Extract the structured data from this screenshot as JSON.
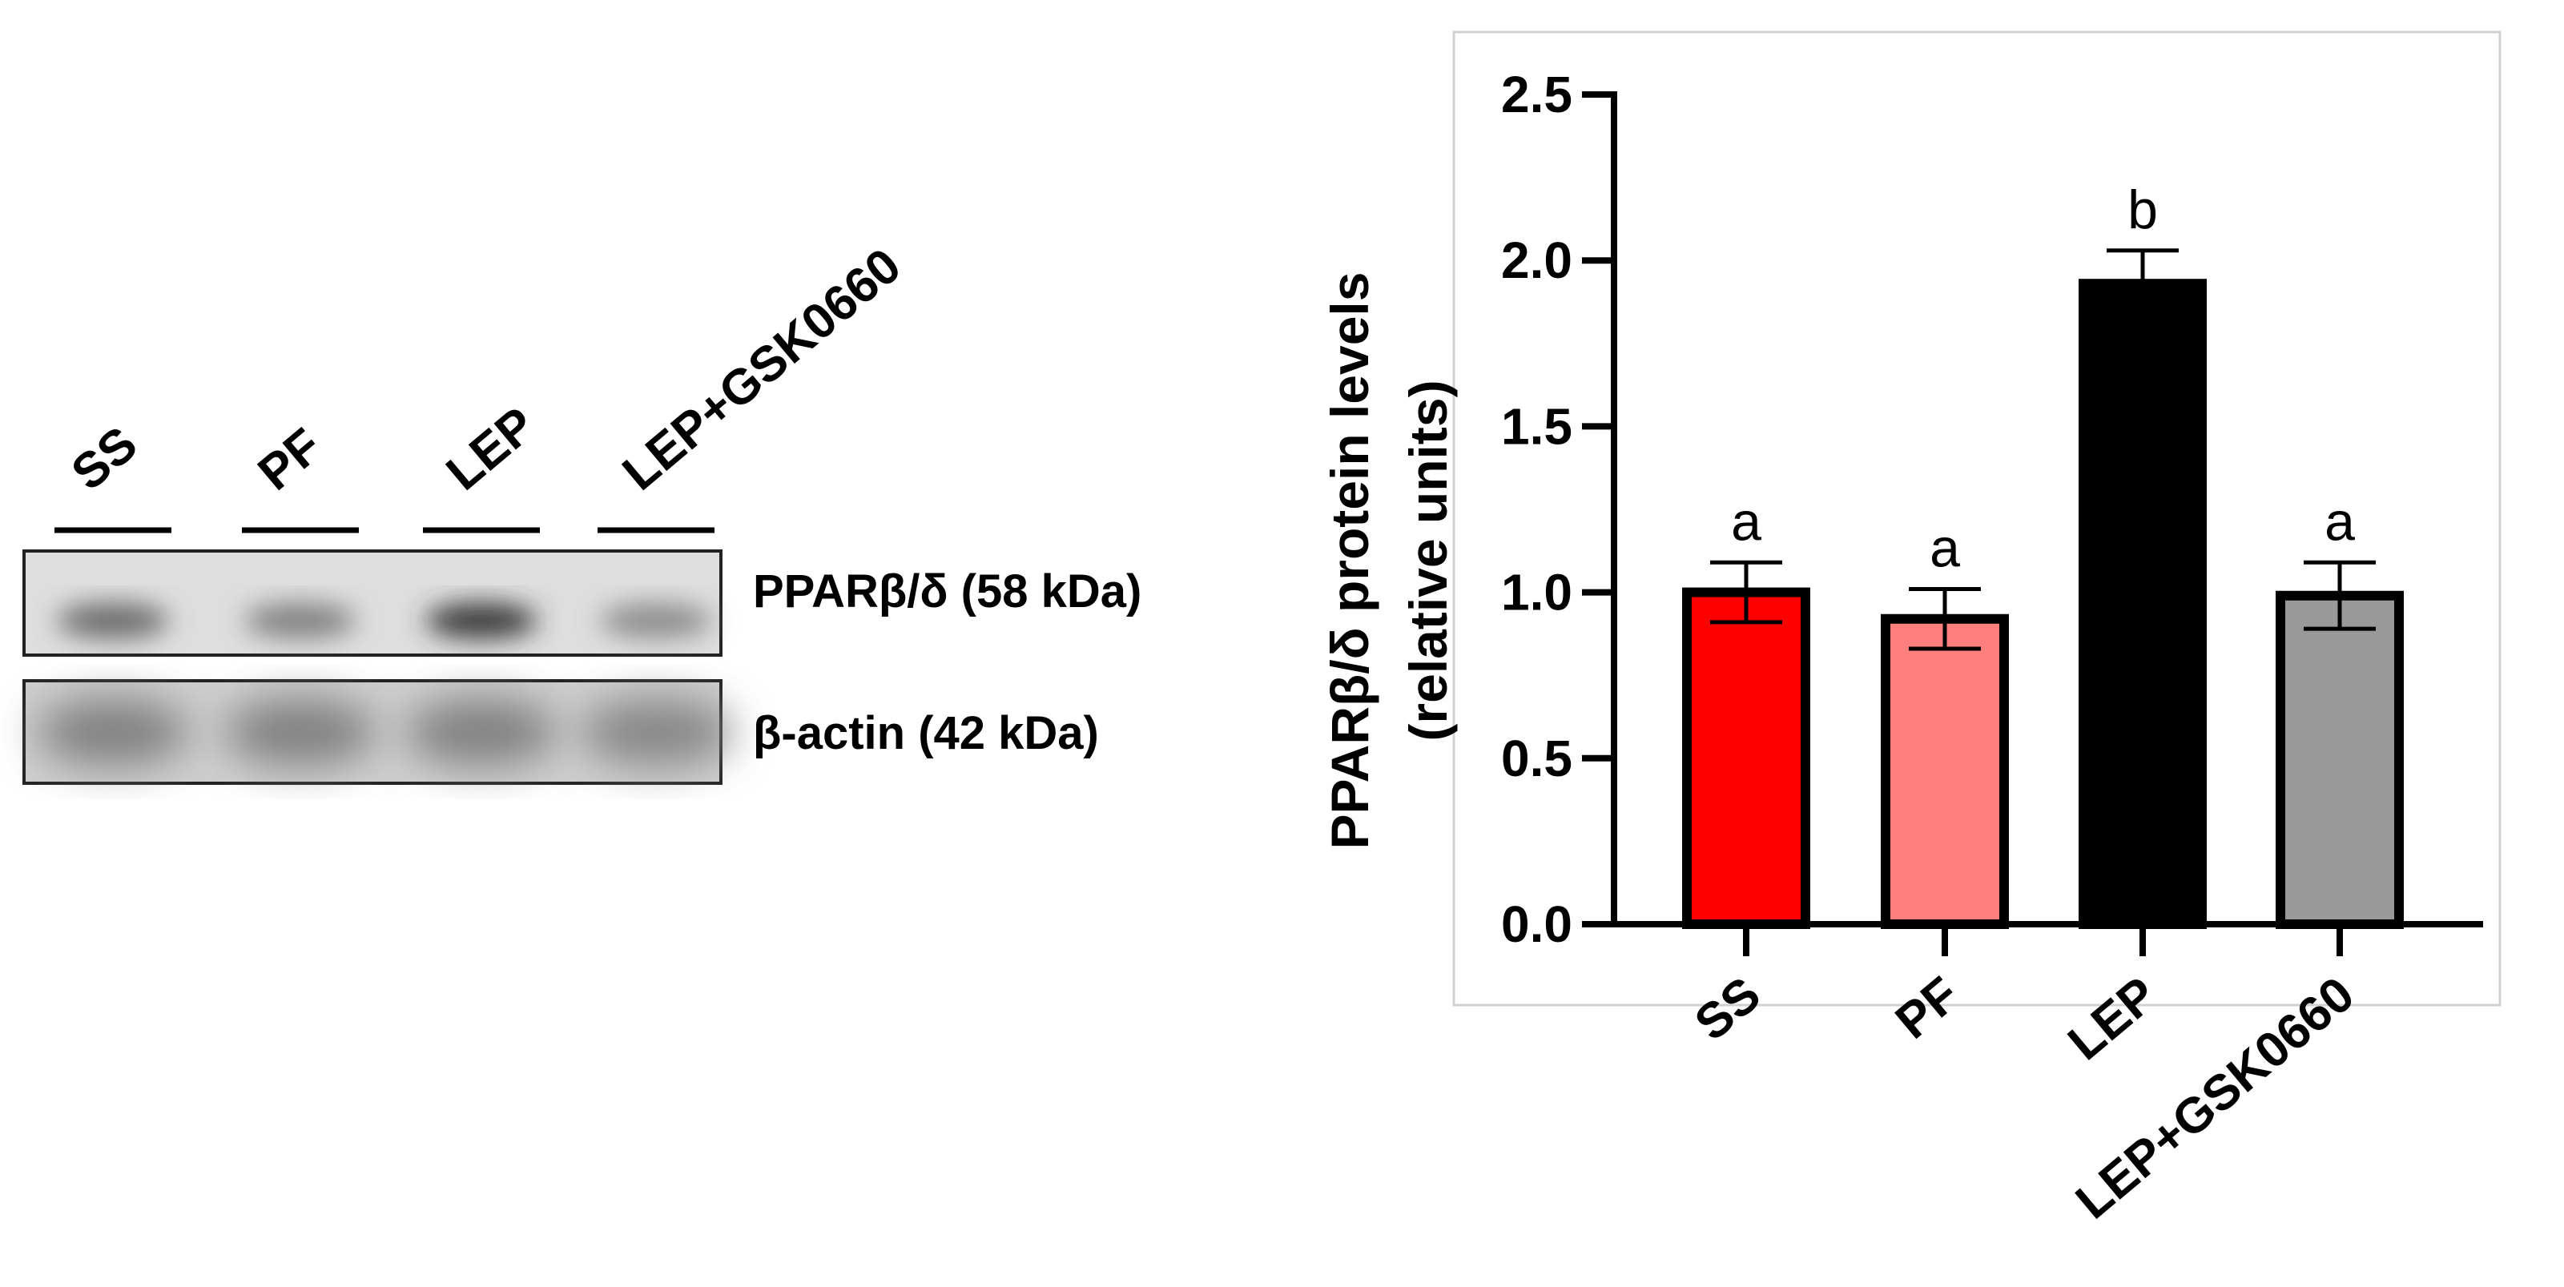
{
  "blot": {
    "lanes": [
      "SS",
      "PF",
      "LEP",
      "LEP+GSK0660"
    ],
    "rows": [
      {
        "label": "PPARβ/δ (58 kDa)",
        "intensities": [
          0.55,
          0.42,
          0.85,
          0.35
        ]
      },
      {
        "label": "β-actin (42 kDa)",
        "intensities": [
          0.6,
          0.6,
          0.6,
          0.55
        ]
      }
    ]
  },
  "chart_data": {
    "type": "bar",
    "categories": [
      "SS",
      "PF",
      "LEP",
      "LEP+GSK0660"
    ],
    "values": [
      1.0,
      0.92,
      1.93,
      0.99
    ],
    "errors": [
      0.09,
      0.09,
      0.1,
      0.1
    ],
    "significance": [
      "a",
      "a",
      "b",
      "a"
    ],
    "colors": [
      "#ff0000",
      "#ff7f7f",
      "#000000",
      "#999999"
    ],
    "ylabel_line1": "PPARβ/δ protein levels",
    "ylabel_line2": "(relative units)",
    "ylim": [
      0,
      2.5
    ],
    "yticks": [
      "0.0",
      "0.5",
      "1.0",
      "1.5",
      "2.0",
      "2.5"
    ],
    "grid": false
  }
}
